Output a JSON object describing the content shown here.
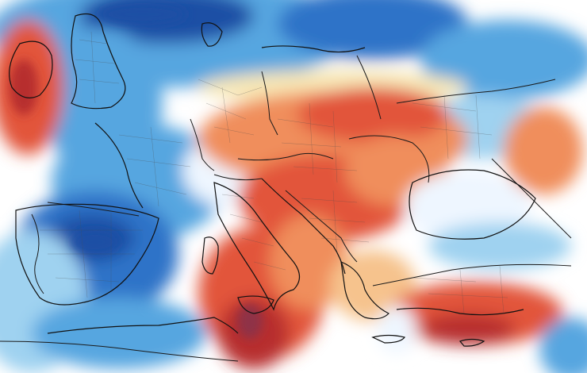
{
  "map": {
    "kind": "temperature-anomaly-map",
    "region": "Europe",
    "legend": "none",
    "colors": {
      "background_neutral": "#ffffff",
      "neutral_light": "#eef6ff",
      "cold_pale": "#cfe6f6",
      "cold_light": "#9fd2f0",
      "cold_medium": "#56a6e0",
      "cold_strong": "#2f73c8",
      "cold_deep": "#1f4fa5",
      "warm_pale": "#f7e7b5",
      "warm_light": "#f6c38d",
      "warm_medium": "#f08e5b",
      "warm_strong": "#e2553a",
      "warm_deep": "#b72f2f",
      "warm_extreme": "#8f3046",
      "boundaries_country": "#1a1a1a",
      "boundaries_region": "#4b4b4b",
      "coastline": "#111111"
    }
  }
}
